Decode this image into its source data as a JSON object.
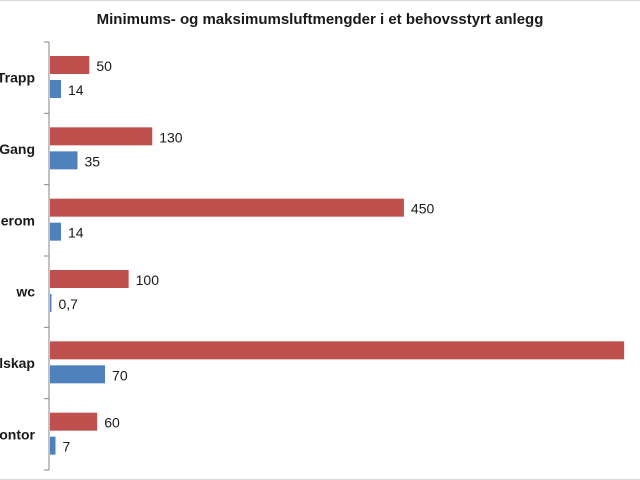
{
  "chart_data": {
    "type": "bar",
    "orientation": "horizontal",
    "title": "Minimums- og maksimumsluftmengder i et behovsstyrt anlegg",
    "categories": [
      "Trapp",
      "Gang",
      "erom",
      "wc",
      "lskap",
      "ontor"
    ],
    "series": [
      {
        "color": "#c0504d",
        "values": [
          50,
          130,
          450,
          100,
          730,
          60
        ],
        "labels": [
          "50",
          "130",
          "450",
          "100",
          "",
          "60"
        ]
      },
      {
        "color": "#4f81bd",
        "values": [
          14,
          35,
          14,
          0.7,
          70,
          7
        ],
        "labels": [
          "14",
          "35",
          "14",
          "0,7",
          "70",
          "7"
        ]
      }
    ],
    "xlabel": "",
    "ylabel": "",
    "grid": false,
    "legend": "none"
  }
}
